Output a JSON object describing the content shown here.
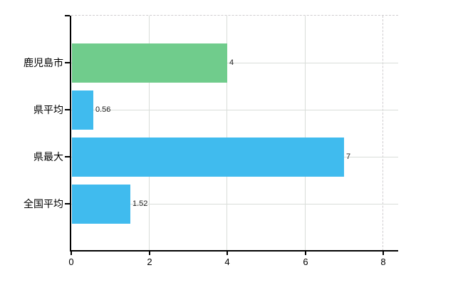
{
  "chart_data": {
    "type": "bar",
    "orientation": "horizontal",
    "title": "",
    "xlabel": "",
    "ylabel": "",
    "categories": [
      "鹿児島市",
      "県平均",
      "県最大",
      "全国平均"
    ],
    "values": [
      4,
      0.56,
      7,
      1.52
    ],
    "value_labels": [
      "4",
      "0.56",
      "7",
      "1.52"
    ],
    "bar_colors": [
      "#70cc8c",
      "#40bbee",
      "#40bbee",
      "#40bbee"
    ],
    "xlim": [
      0,
      8
    ],
    "x_ticks": [
      0,
      2,
      4,
      6,
      8
    ],
    "x_tick_labels": [
      "0",
      "2",
      "4",
      "6",
      "8"
    ],
    "grid": true,
    "legend": false,
    "colors": {
      "background": "#ffffff",
      "axis": "#000000",
      "gridline": "#d9ddd9",
      "dashed_border": "#cfcccf",
      "category_label": "#000000",
      "value_label": "#222222",
      "tick_label": "#000000"
    }
  }
}
